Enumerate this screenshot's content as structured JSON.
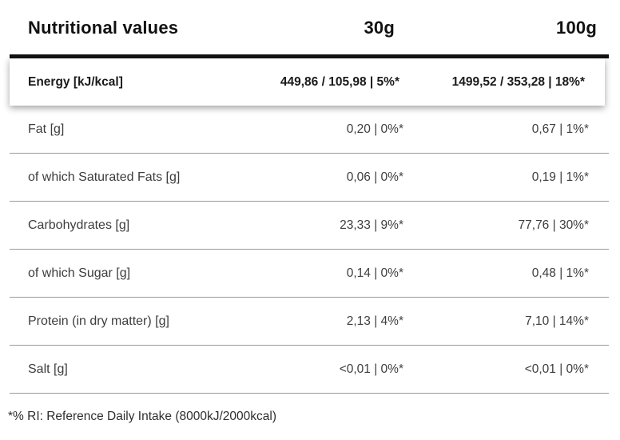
{
  "table": {
    "header": {
      "title": "Nutritional values",
      "col_30g": "30g",
      "col_100g": "100g"
    },
    "energy_row": {
      "label": "Energy [kJ/kcal]",
      "value_30g": "449,86 / 105,98 | 5%*",
      "value_100g": "1499,52 / 353,28 | 18%*"
    },
    "rows": [
      {
        "label": "Fat [g]",
        "value_30g": "0,20 | 0%*",
        "value_100g": "0,67 | 1%*"
      },
      {
        "label": "of which Saturated Fats [g]",
        "value_30g": "0,06 | 0%*",
        "value_100g": "0,19 | 1%*"
      },
      {
        "label": "Carbohydrates [g]",
        "value_30g": "23,33 | 9%*",
        "value_100g": "77,76 | 30%*"
      },
      {
        "label": "of which Sugar [g]",
        "value_30g": "0,14 | 0%*",
        "value_100g": "0,48 | 1%*"
      },
      {
        "label": "Protein (in dry matter) [g]",
        "value_30g": "2,13 | 4%*",
        "value_100g": "7,10 | 14%*"
      },
      {
        "label": "Salt [g]",
        "value_30g": "<0,01 | 0%*",
        "value_100g": "<0,01 | 0%*"
      }
    ],
    "footnote": "*% RI: Reference Daily Intake (8000kJ/2000kcal)"
  },
  "colors": {
    "rule": "#111111",
    "divider": "#999999",
    "text": "#3d3d3d",
    "bold_text": "#1a1a1a"
  }
}
